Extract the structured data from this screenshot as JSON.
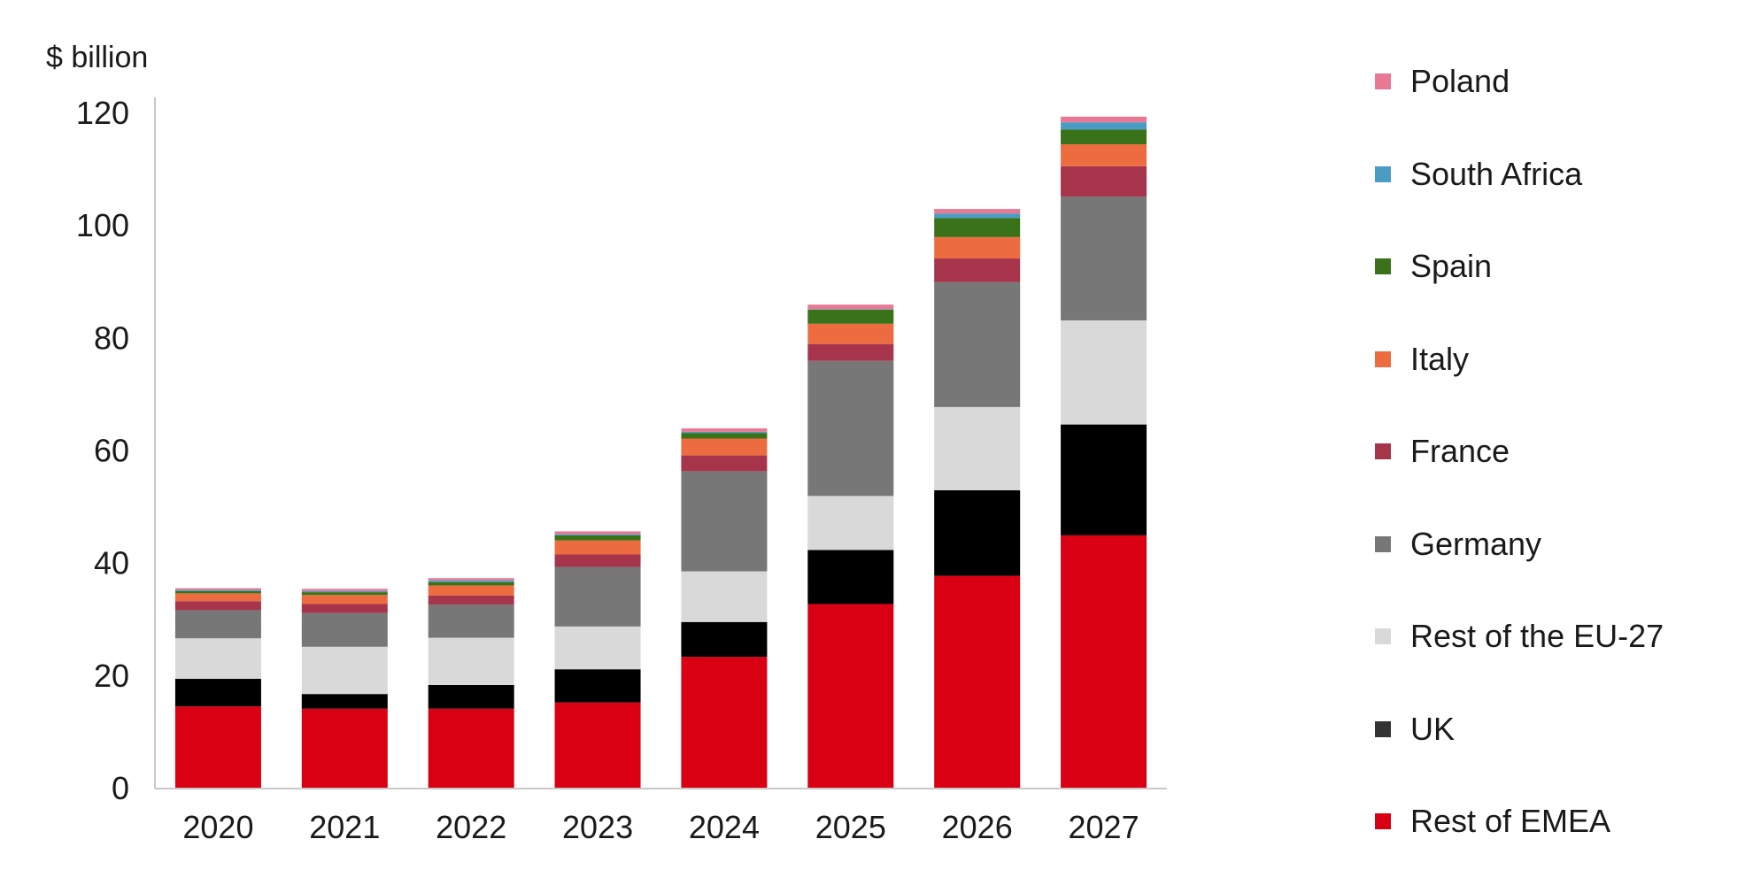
{
  "chart_data": {
    "type": "bar",
    "stacked": true,
    "unit_label": "$ billion",
    "categories": [
      "2020",
      "2021",
      "2022",
      "2023",
      "2024",
      "2025",
      "2026",
      "2027"
    ],
    "ylim": [
      0,
      120
    ],
    "yticks": [
      0,
      20,
      40,
      60,
      80,
      100,
      120
    ],
    "grid": false,
    "legend_position": "right",
    "series": [
      {
        "name": "Rest of EMEA",
        "color": "#D90013",
        "values": [
          14.6,
          14.2,
          14.2,
          15.3,
          23.4,
          32.8,
          37.8,
          45.0
        ]
      },
      {
        "name": "UK",
        "color": "#000000",
        "values": [
          4.9,
          2.6,
          4.2,
          5.9,
          6.2,
          9.6,
          15.2,
          19.7
        ]
      },
      {
        "name": "Rest of the EU-27",
        "color": "#D9D9D9",
        "values": [
          7.2,
          8.4,
          8.4,
          7.6,
          9.0,
          9.6,
          14.8,
          18.5
        ]
      },
      {
        "name": "Germany",
        "color": "#777777",
        "values": [
          5.0,
          6.0,
          5.9,
          10.6,
          17.8,
          24.0,
          22.2,
          22.0
        ]
      },
      {
        "name": "France",
        "color": "#A6344B",
        "values": [
          1.6,
          1.6,
          1.6,
          2.2,
          2.8,
          3.0,
          4.2,
          5.4
        ]
      },
      {
        "name": "Italy",
        "color": "#EC6C40",
        "values": [
          1.4,
          1.6,
          1.8,
          2.5,
          3.0,
          3.6,
          3.8,
          3.9
        ]
      },
      {
        "name": "Spain",
        "color": "#3A7219",
        "values": [
          0.4,
          0.5,
          0.6,
          0.9,
          1.0,
          2.5,
          3.4,
          2.6
        ]
      },
      {
        "name": "South Africa",
        "color": "#4A9CC4",
        "values": [
          0.2,
          0.2,
          0.3,
          0.2,
          0.2,
          0.1,
          0.8,
          1.3
        ]
      },
      {
        "name": "Poland",
        "color": "#E87894",
        "values": [
          0.3,
          0.4,
          0.4,
          0.5,
          0.6,
          0.8,
          0.8,
          1.0
        ]
      }
    ]
  }
}
